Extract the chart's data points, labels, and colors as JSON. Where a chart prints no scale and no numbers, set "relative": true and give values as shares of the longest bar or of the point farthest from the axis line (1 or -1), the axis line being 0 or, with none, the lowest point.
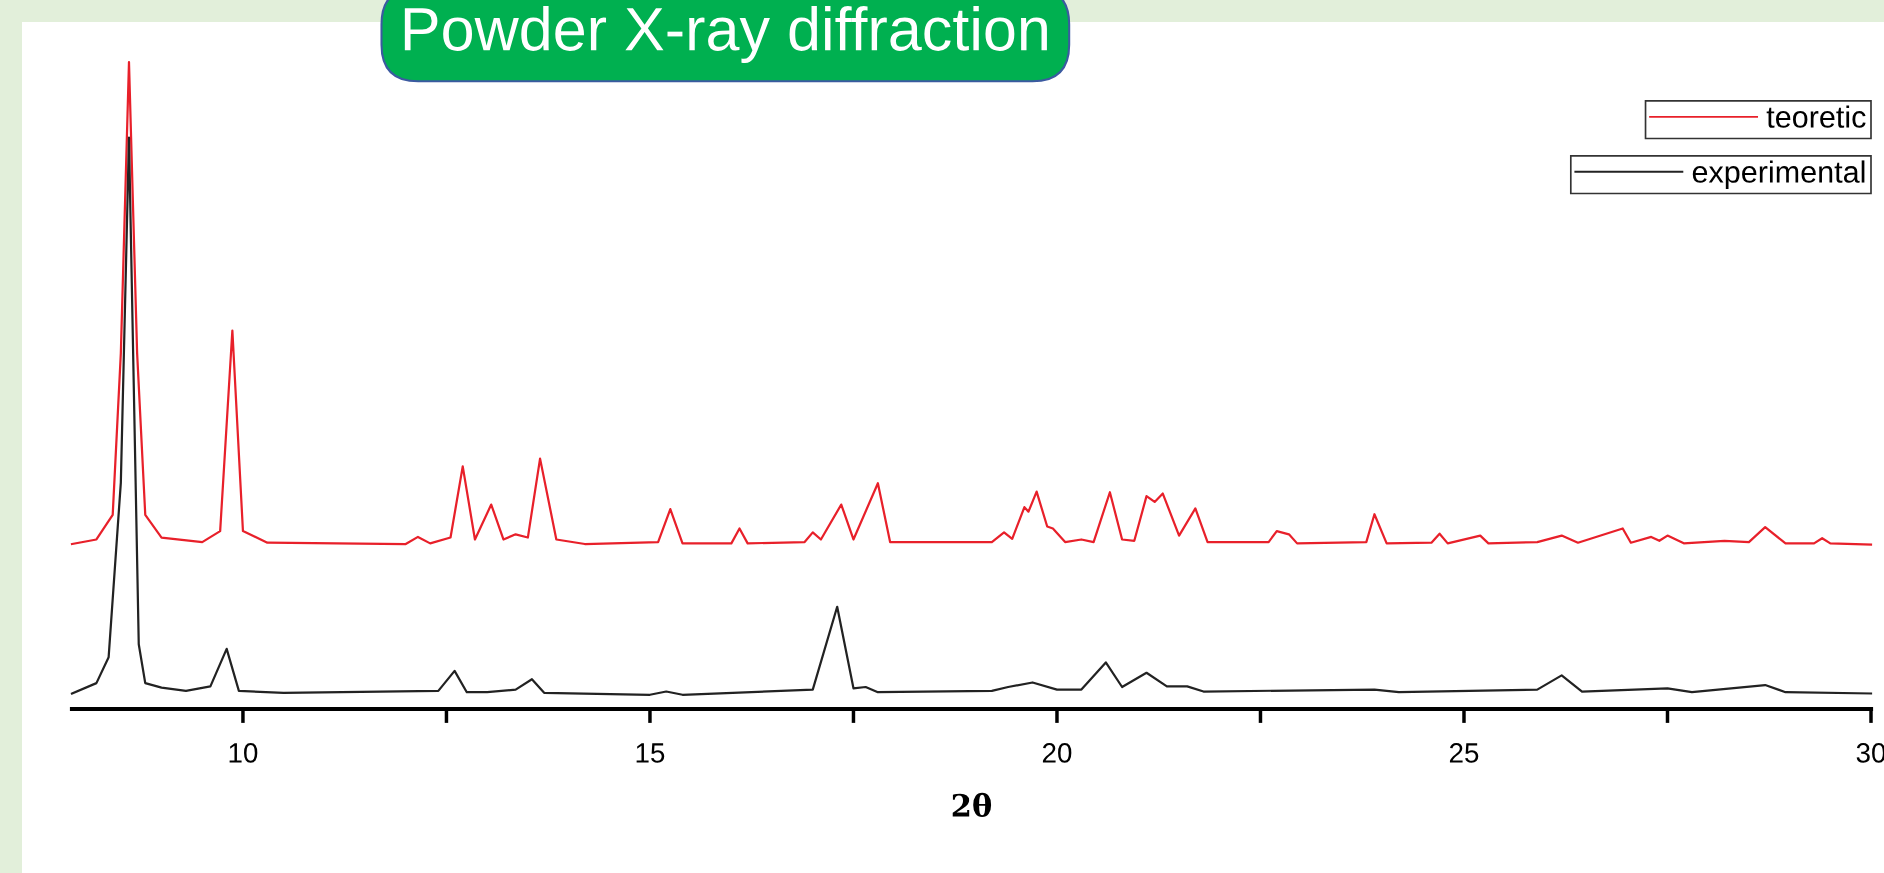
{
  "chart_data": {
    "type": "line",
    "title": "Powder X-ray diffraction",
    "xlabel": "2θ",
    "relative": true,
    "xlim": [
      7.9,
      30
    ],
    "xticks": [
      10,
      {
        "value": 12.5,
        "label": null
      },
      15,
      {
        "value": 17.5,
        "label": null
      },
      20,
      {
        "value": 22.5,
        "label": null
      },
      25,
      {
        "value": 27.5,
        "label": null
      },
      30
    ],
    "tick_labels": "x",
    "grid": false,
    "legend": "top right",
    "marker": "none",
    "line_style": "solid",
    "series": [
      {
        "name": "teoretic",
        "color": "#e8202a",
        "x": [
          7.9,
          8.2,
          8.4,
          8.5,
          8.6,
          8.7,
          8.8,
          9.0,
          9.5,
          9.72,
          9.87,
          10.0,
          10.3,
          12.0,
          12.15,
          12.3,
          12.55,
          12.7,
          12.85,
          13.05,
          13.2,
          13.35,
          13.5,
          13.65,
          13.85,
          14.2,
          15.1,
          15.25,
          15.4,
          16.0,
          16.1,
          16.2,
          16.9,
          17.0,
          17.1,
          17.35,
          17.5,
          17.8,
          17.95,
          19.2,
          19.35,
          19.45,
          19.6,
          19.65,
          19.75,
          19.88,
          19.95,
          20.1,
          20.3,
          20.45,
          20.65,
          20.8,
          20.95,
          21.1,
          21.2,
          21.3,
          21.5,
          21.7,
          21.85,
          22.6,
          22.7,
          22.85,
          22.95,
          23.8,
          23.9,
          24.05,
          24.6,
          24.7,
          24.8,
          25.2,
          25.3,
          25.9,
          26.2,
          26.4,
          26.95,
          27.05,
          27.3,
          27.4,
          27.5,
          27.7,
          28.2,
          28.5,
          28.7,
          28.95,
          29.3,
          29.4,
          29.5,
          30.0
        ],
        "values": [
          0.255,
          0.262,
          0.3,
          0.55,
          1.0,
          0.55,
          0.3,
          0.265,
          0.258,
          0.275,
          0.585,
          0.275,
          0.257,
          0.255,
          0.266,
          0.256,
          0.265,
          0.375,
          0.262,
          0.316,
          0.262,
          0.27,
          0.265,
          0.387,
          0.262,
          0.255,
          0.258,
          0.309,
          0.256,
          0.256,
          0.279,
          0.256,
          0.258,
          0.273,
          0.262,
          0.316,
          0.262,
          0.349,
          0.258,
          0.258,
          0.273,
          0.263,
          0.312,
          0.305,
          0.336,
          0.282,
          0.279,
          0.258,
          0.262,
          0.258,
          0.335,
          0.262,
          0.26,
          0.329,
          0.32,
          0.333,
          0.268,
          0.31,
          0.258,
          0.258,
          0.275,
          0.27,
          0.256,
          0.258,
          0.301,
          0.256,
          0.257,
          0.271,
          0.256,
          0.268,
          0.256,
          0.258,
          0.268,
          0.257,
          0.279,
          0.257,
          0.266,
          0.26,
          0.268,
          0.256,
          0.26,
          0.258,
          0.281,
          0.256,
          0.256,
          0.264,
          0.256,
          0.254
        ]
      },
      {
        "name": "experimental",
        "color": "#222222",
        "x": [
          7.9,
          8.2,
          8.35,
          8.5,
          8.6,
          8.72,
          8.8,
          9.0,
          9.3,
          9.6,
          9.8,
          9.95,
          10.5,
          12.4,
          12.6,
          12.75,
          13.0,
          13.35,
          13.55,
          13.7,
          15.0,
          15.2,
          15.4,
          17.0,
          17.3,
          17.5,
          17.65,
          17.8,
          19.2,
          19.4,
          19.7,
          20.0,
          20.3,
          20.6,
          20.8,
          21.1,
          21.35,
          21.6,
          21.8,
          23.9,
          24.2,
          25.9,
          26.2,
          26.45,
          27.5,
          27.8,
          28.7,
          28.95,
          30.0
        ],
        "values": [
          0.024,
          0.04,
          0.08,
          0.35,
          0.883,
          0.1,
          0.04,
          0.033,
          0.028,
          0.035,
          0.093,
          0.028,
          0.025,
          0.028,
          0.059,
          0.026,
          0.026,
          0.03,
          0.046,
          0.025,
          0.022,
          0.027,
          0.022,
          0.03,
          0.158,
          0.032,
          0.034,
          0.026,
          0.028,
          0.034,
          0.041,
          0.03,
          0.03,
          0.072,
          0.034,
          0.056,
          0.035,
          0.035,
          0.027,
          0.03,
          0.026,
          0.03,
          0.052,
          0.027,
          0.032,
          0.026,
          0.037,
          0.026,
          0.024
        ]
      }
    ]
  }
}
